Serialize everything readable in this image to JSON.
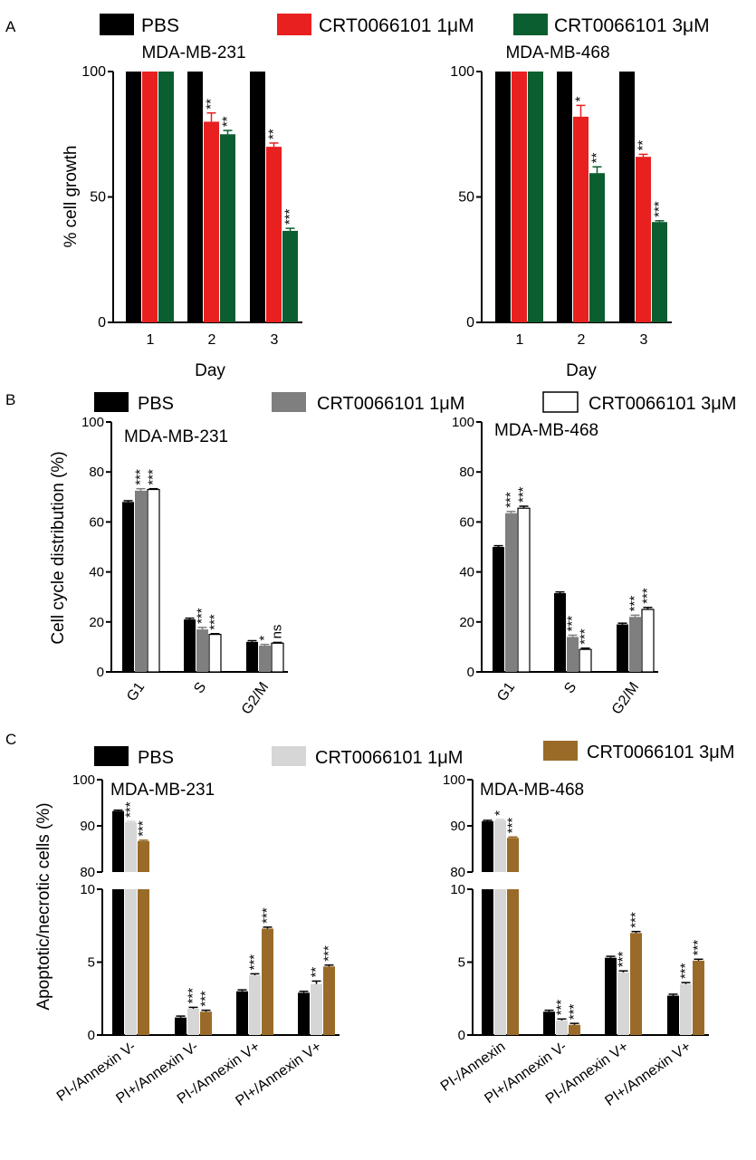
{
  "panels": [
    {
      "letter": "A",
      "legend": [
        "PBS",
        "CRT0066101 1μM",
        "CRT0066101 3μM"
      ],
      "colors": [
        "#000000",
        "#e8201f",
        "#0b5e2f"
      ],
      "ylabel": "% cell growth",
      "xlabel": "Day",
      "charts": [
        {
          "title": "MDA-MB-231",
          "type": "bar",
          "categories": [
            "1",
            "2",
            "3"
          ],
          "ylim": [
            0,
            100
          ],
          "yticks": [
            "0",
            "50",
            "100"
          ],
          "series": [
            {
              "name": "PBS",
              "values": [
                100,
                100,
                100
              ],
              "errors": [
                0,
                0,
                0
              ],
              "sig": [
                "",
                "",
                ""
              ]
            },
            {
              "name": "CRT0066101 1μM",
              "values": [
                100,
                80,
                70
              ],
              "errors": [
                0,
                3.5,
                1.5
              ],
              "sig": [
                "",
                "**",
                "**"
              ]
            },
            {
              "name": "CRT0066101 3μM",
              "values": [
                100,
                75,
                36.5
              ],
              "errors": [
                0,
                1.5,
                1.0
              ],
              "sig": [
                "",
                "**",
                "***"
              ]
            }
          ]
        },
        {
          "title": "MDA-MB-468",
          "type": "bar",
          "categories": [
            "1",
            "2",
            "3"
          ],
          "ylim": [
            0,
            100
          ],
          "yticks": [
            "0",
            "50",
            "100"
          ],
          "series": [
            {
              "name": "PBS",
              "values": [
                100,
                100,
                100
              ],
              "errors": [
                0,
                0,
                0
              ],
              "sig": [
                "",
                "",
                ""
              ]
            },
            {
              "name": "CRT0066101 1μM",
              "values": [
                100,
                82,
                66
              ],
              "errors": [
                0,
                4.5,
                1.0
              ],
              "sig": [
                "",
                "*",
                "**"
              ]
            },
            {
              "name": "CRT0066101 3μM",
              "values": [
                100,
                59.5,
                40
              ],
              "errors": [
                0,
                2.5,
                0.5
              ],
              "sig": [
                "",
                "**",
                "***"
              ]
            }
          ]
        }
      ]
    },
    {
      "letter": "B",
      "legend": [
        "PBS",
        "CRT0066101 1μM",
        "CRT0066101 3μM"
      ],
      "colors": [
        "#000000",
        "#7f7f7f",
        "#ffffff"
      ],
      "ylabel": "Cell cycle distribution (%)",
      "xlabel": "",
      "charts": [
        {
          "title": "MDA-MB-231",
          "type": "bar",
          "categories": [
            "G1",
            "S",
            "G2/M"
          ],
          "ylim": [
            0,
            100
          ],
          "yticks": [
            "0",
            "20",
            "40",
            "60",
            "80",
            "100"
          ],
          "series": [
            {
              "name": "PBS",
              "values": [
                68,
                21,
                12
              ],
              "errors": [
                0.5,
                0.5,
                0.5
              ],
              "sig": [
                "",
                "",
                ""
              ]
            },
            {
              "name": "CRT0066101 1μM",
              "values": [
                72.5,
                17,
                10.5
              ],
              "errors": [
                0.8,
                0.8,
                0.5
              ],
              "sig": [
                "***",
                "***",
                "*"
              ]
            },
            {
              "name": "CRT0066101 3μM",
              "values": [
                73,
                15,
                11.5
              ],
              "errors": [
                0.3,
                0.3,
                0.3
              ],
              "sig": [
                "***",
                "***",
                "ns"
              ]
            }
          ]
        },
        {
          "title": "MDA-MB-468",
          "type": "bar",
          "categories": [
            "G1",
            "S",
            "G2/M"
          ],
          "ylim": [
            0,
            100
          ],
          "yticks": [
            "0",
            "20",
            "40",
            "60",
            "80",
            "100"
          ],
          "series": [
            {
              "name": "PBS",
              "values": [
                50,
                31.5,
                19
              ],
              "errors": [
                0.5,
                0.5,
                0.5
              ],
              "sig": [
                "",
                "",
                ""
              ]
            },
            {
              "name": "CRT0066101 1μM",
              "values": [
                63.5,
                14,
                22
              ],
              "errors": [
                0.7,
                0.7,
                0.7
              ],
              "sig": [
                "***",
                "***",
                "***"
              ]
            },
            {
              "name": "CRT0066101 3μM",
              "values": [
                65.5,
                9,
                25
              ],
              "errors": [
                0.8,
                0.5,
                0.8
              ],
              "sig": [
                "***",
                "***",
                "***"
              ]
            }
          ]
        }
      ]
    },
    {
      "letter": "C",
      "legend": [
        "PBS",
        "CRT0066101 1μM",
        "CRT0066101 3μM"
      ],
      "colors": [
        "#000000",
        "#d6d6d6",
        "#9a6b28"
      ],
      "ylabel": "Apoptotic/necrotic cells  (%)",
      "xlabel": "",
      "charts": [
        {
          "title": "MDA-MB-231",
          "type": "bar",
          "categories": [
            "PI-/Annexin V-",
            "PI+/Annexin V-",
            "PI-/Annexin V+",
            "PI+/Annexin V+"
          ],
          "ylim_lower": [
            0,
            10
          ],
          "ylim_upper": [
            80,
            100
          ],
          "yticks_lower": [
            "0",
            "5",
            "10"
          ],
          "yticks_upper": [
            "80",
            "90",
            "100"
          ],
          "series": [
            {
              "name": "PBS",
              "values": [
                93.2,
                1.2,
                3.0,
                2.9
              ],
              "errors": [
                0.2,
                0.1,
                0.1,
                0.1
              ],
              "sig": [
                "",
                "",
                "",
                ""
              ]
            },
            {
              "name": "CRT0066101 1μM",
              "values": [
                90.8,
                1.8,
                4.1,
                3.5
              ],
              "errors": [
                0.2,
                0.1,
                0.1,
                0.2
              ],
              "sig": [
                "***",
                "***",
                "***",
                "**"
              ]
            },
            {
              "name": "CRT0066101 3μM",
              "values": [
                86.7,
                1.6,
                7.3,
                4.7
              ],
              "errors": [
                0.2,
                0.1,
                0.1,
                0.1
              ],
              "sig": [
                "***",
                "***",
                "***",
                "***"
              ]
            }
          ]
        },
        {
          "title": "MDA-MB-468",
          "type": "bar",
          "categories": [
            "PI-/Annexin",
            "PI+/Annexin V-",
            "PI-/Annexin V+",
            "PI+/Annexin V+"
          ],
          "ylim_lower": [
            0,
            10
          ],
          "ylim_upper": [
            80,
            100
          ],
          "yticks_lower": [
            "0",
            "5",
            "10"
          ],
          "yticks_upper": [
            "80",
            "90",
            "100"
          ],
          "series": [
            {
              "name": "PBS",
              "values": [
                91.0,
                1.6,
                5.3,
                2.7
              ],
              "errors": [
                0.2,
                0.1,
                0.1,
                0.1
              ],
              "sig": [
                "",
                "",
                "",
                ""
              ]
            },
            {
              "name": "CRT0066101 1μM",
              "values": [
                91.2,
                1.0,
                4.3,
                3.5
              ],
              "errors": [
                0.2,
                0.1,
                0.1,
                0.1
              ],
              "sig": [
                "*",
                "***",
                "***",
                "***"
              ]
            },
            {
              "name": "CRT0066101 3μM",
              "values": [
                87.4,
                0.7,
                7.0,
                5.1
              ],
              "errors": [
                0.2,
                0.1,
                0.1,
                0.1
              ],
              "sig": [
                "***",
                "***",
                "***",
                "***"
              ]
            }
          ]
        }
      ]
    }
  ]
}
